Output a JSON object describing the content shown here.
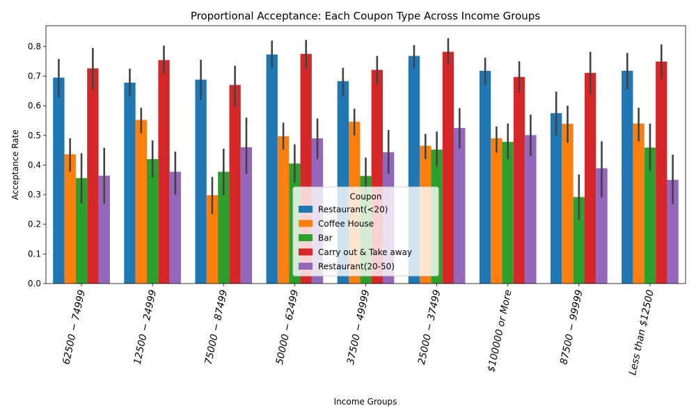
{
  "chart_data": {
    "type": "bar",
    "title": "Proportional Acceptance: Each Coupon Type Across Income Groups",
    "xlabel": "Income Groups",
    "ylabel": "Acceptance Rate",
    "ylim": [
      0,
      0.87
    ],
    "yticks": [
      "0.0",
      "0.1",
      "0.2",
      "0.3",
      "0.4",
      "0.5",
      "0.6",
      "0.7",
      "0.8"
    ],
    "grid": false,
    "legend": {
      "title": "Coupon",
      "placement": "center"
    },
    "categories": [
      "$62500 - $74999",
      "$12500 - $24999",
      "$75000 - $87499",
      "$50000 - $62499",
      "$37500 - $49999",
      "$25000 - $37499",
      "$100000 or More",
      "$87500 - $99999",
      "Less than $12500"
    ],
    "category_labels": [
      "62500 − 74999",
      "12500 − 24999",
      "75000 − 87499",
      "50000 − 62499",
      "37500 − 49999",
      "25000 − 37499",
      "$100000 or More",
      "87500 − 99999",
      "Less than $12500"
    ],
    "series": [
      {
        "name": "Restaurant(<20)",
        "color": "#1f77b4",
        "values": [
          0.695,
          0.678,
          0.688,
          0.773,
          0.683,
          0.768,
          0.718,
          0.575,
          0.718
        ],
        "ci_low": [
          0.628,
          0.632,
          0.62,
          0.727,
          0.632,
          0.727,
          0.67,
          0.5,
          0.655
        ],
        "ci_high": [
          0.758,
          0.725,
          0.755,
          0.82,
          0.728,
          0.805,
          0.762,
          0.648,
          0.778
        ]
      },
      {
        "name": "Coffee House",
        "color": "#ff7f0e",
        "values": [
          0.436,
          0.552,
          0.298,
          0.497,
          0.546,
          0.465,
          0.49,
          0.539,
          0.54
        ],
        "ci_low": [
          0.378,
          0.508,
          0.235,
          0.452,
          0.5,
          0.42,
          0.442,
          0.475,
          0.48
        ],
        "ci_high": [
          0.49,
          0.593,
          0.36,
          0.543,
          0.59,
          0.505,
          0.53,
          0.6,
          0.593
        ]
      },
      {
        "name": "Bar",
        "color": "#2ca02c",
        "values": [
          0.356,
          0.42,
          0.377,
          0.405,
          0.363,
          0.452,
          0.478,
          0.292,
          0.459
        ],
        "ci_low": [
          0.27,
          0.358,
          0.298,
          0.34,
          0.3,
          0.395,
          0.42,
          0.215,
          0.38
        ],
        "ci_high": [
          0.44,
          0.483,
          0.455,
          0.47,
          0.425,
          0.513,
          0.54,
          0.368,
          0.54
        ]
      },
      {
        "name": "Carry out & Take away",
        "color": "#d62728",
        "values": [
          0.726,
          0.754,
          0.67,
          0.775,
          0.721,
          0.782,
          0.697,
          0.711,
          0.749
        ],
        "ci_low": [
          0.655,
          0.708,
          0.598,
          0.725,
          0.672,
          0.738,
          0.645,
          0.64,
          0.69
        ],
        "ci_high": [
          0.795,
          0.803,
          0.735,
          0.822,
          0.768,
          0.828,
          0.75,
          0.782,
          0.807
        ]
      },
      {
        "name": "Restaurant(20-50)",
        "color": "#9467bd",
        "values": [
          0.364,
          0.377,
          0.46,
          0.49,
          0.443,
          0.525,
          0.501,
          0.389,
          0.35
        ],
        "ci_low": [
          0.27,
          0.3,
          0.37,
          0.42,
          0.37,
          0.455,
          0.43,
          0.29,
          0.268
        ],
        "ci_high": [
          0.458,
          0.445,
          0.56,
          0.557,
          0.518,
          0.592,
          0.57,
          0.48,
          0.435
        ]
      }
    ]
  }
}
